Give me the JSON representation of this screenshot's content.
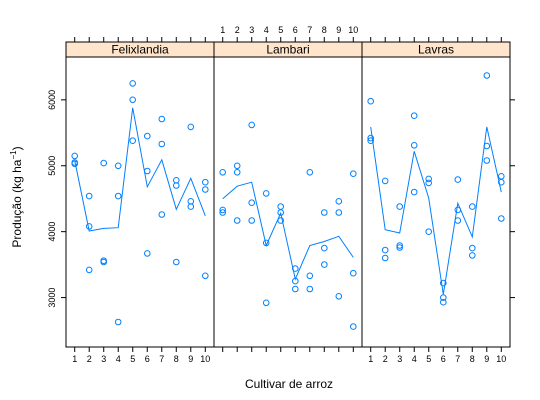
{
  "chart_data": {
    "type": "scatter",
    "xlabel": "Cultivar de arroz",
    "ylabel_main": "Produção (kg ha",
    "ylabel_sup": "−1",
    "ylabel_close": ")",
    "x_ticks": [
      "1",
      "2",
      "3",
      "4",
      "5",
      "6",
      "7",
      "8",
      "9",
      "10"
    ],
    "y_ticks": [
      3000,
      4000,
      5000,
      6000
    ],
    "ylim": [
      2250,
      6650
    ],
    "xlim": [
      0.4,
      10.6
    ],
    "series_color": "#0080ff",
    "strip_color": "#ffe5cc",
    "panels": [
      {
        "name": "Felixlandia",
        "points": [
          [
            1,
            5150
          ],
          [
            1,
            5050
          ],
          [
            1,
            5030
          ],
          [
            2,
            4540
          ],
          [
            2,
            4080
          ],
          [
            2,
            3420
          ],
          [
            3,
            5040
          ],
          [
            3,
            3560
          ],
          [
            3,
            3540
          ],
          [
            4,
            5000
          ],
          [
            4,
            4540
          ],
          [
            4,
            2630
          ],
          [
            5,
            6250
          ],
          [
            5,
            6000
          ],
          [
            5,
            5380
          ],
          [
            6,
            5450
          ],
          [
            6,
            4920
          ],
          [
            6,
            3670
          ],
          [
            7,
            5710
          ],
          [
            7,
            5330
          ],
          [
            7,
            4260
          ],
          [
            8,
            4780
          ],
          [
            8,
            4700
          ],
          [
            8,
            3540
          ],
          [
            9,
            5590
          ],
          [
            9,
            4460
          ],
          [
            9,
            4380
          ],
          [
            10,
            4750
          ],
          [
            10,
            4640
          ],
          [
            10,
            3330
          ]
        ],
        "means": [
          5080,
          4010,
          4050,
          4060,
          5880,
          4680,
          5090,
          4340,
          4810,
          4240
        ]
      },
      {
        "name": "Lambari",
        "points": [
          [
            1,
            4900
          ],
          [
            1,
            4330
          ],
          [
            1,
            4290
          ],
          [
            2,
            5000
          ],
          [
            2,
            4900
          ],
          [
            2,
            4170
          ],
          [
            3,
            5620
          ],
          [
            3,
            4440
          ],
          [
            3,
            4170
          ],
          [
            4,
            4580
          ],
          [
            4,
            3830
          ],
          [
            4,
            2920
          ],
          [
            5,
            4380
          ],
          [
            5,
            4290
          ],
          [
            5,
            4170
          ],
          [
            6,
            3440
          ],
          [
            6,
            3250
          ],
          [
            6,
            3130
          ],
          [
            7,
            4900
          ],
          [
            7,
            3330
          ],
          [
            7,
            3130
          ],
          [
            8,
            4290
          ],
          [
            8,
            3750
          ],
          [
            8,
            3500
          ],
          [
            9,
            4460
          ],
          [
            9,
            4290
          ],
          [
            9,
            3020
          ],
          [
            10,
            4880
          ],
          [
            10,
            3370
          ],
          [
            10,
            2560
          ]
        ],
        "means": [
          4500,
          4690,
          4750,
          3790,
          4280,
          3280,
          3790,
          3850,
          3930,
          3610
        ]
      },
      {
        "name": "Lavras",
        "points": [
          [
            1,
            5980
          ],
          [
            1,
            5420
          ],
          [
            1,
            5380
          ],
          [
            2,
            4770
          ],
          [
            2,
            3720
          ],
          [
            2,
            3600
          ],
          [
            3,
            4380
          ],
          [
            3,
            3790
          ],
          [
            3,
            3760
          ],
          [
            4,
            5760
          ],
          [
            4,
            5310
          ],
          [
            4,
            4600
          ],
          [
            5,
            4800
          ],
          [
            5,
            4740
          ],
          [
            5,
            4000
          ],
          [
            6,
            3220
          ],
          [
            6,
            3000
          ],
          [
            6,
            2930
          ],
          [
            7,
            4790
          ],
          [
            7,
            4330
          ],
          [
            7,
            4170
          ],
          [
            8,
            4380
          ],
          [
            8,
            3750
          ],
          [
            8,
            3640
          ],
          [
            9,
            6370
          ],
          [
            9,
            5300
          ],
          [
            9,
            5080
          ],
          [
            10,
            4840
          ],
          [
            10,
            4750
          ],
          [
            10,
            4200
          ]
        ],
        "means": [
          5590,
          4030,
          3980,
          5220,
          4510,
          3050,
          4430,
          3920,
          5590,
          4600
        ]
      }
    ]
  }
}
